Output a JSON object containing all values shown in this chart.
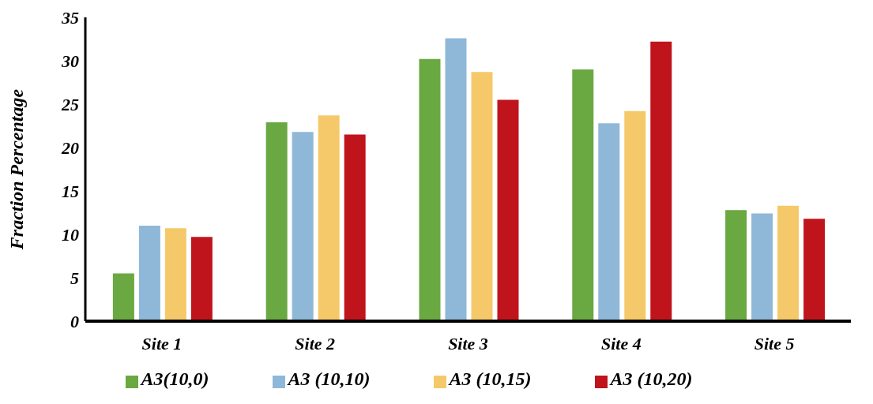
{
  "chart_data": {
    "type": "bar",
    "ylabel": "Fraction Percentage",
    "categories": [
      "Site 1",
      "Site 2",
      "Site 3",
      "Site 4",
      "Site 5"
    ],
    "series": [
      {
        "name": "A3(10,0)",
        "color": "#6aa842",
        "values": [
          5.5,
          22.9,
          30.2,
          29.0,
          12.8
        ]
      },
      {
        "name": "A3 (10,10)",
        "color": "#8fb8d8",
        "values": [
          11.0,
          21.8,
          32.6,
          22.8,
          12.4
        ]
      },
      {
        "name": "A3 (10,15)",
        "color": "#f5c96a",
        "values": [
          10.7,
          23.7,
          28.7,
          24.2,
          13.3
        ]
      },
      {
        "name": "A3 (10,20)",
        "color": "#c0141c",
        "values": [
          9.7,
          21.5,
          25.5,
          32.2,
          11.8
        ]
      }
    ],
    "ylim": [
      0,
      35
    ],
    "yticks": [
      0,
      5,
      10,
      15,
      20,
      25,
      30,
      35
    ],
    "grid": false,
    "legend": "bottom"
  }
}
